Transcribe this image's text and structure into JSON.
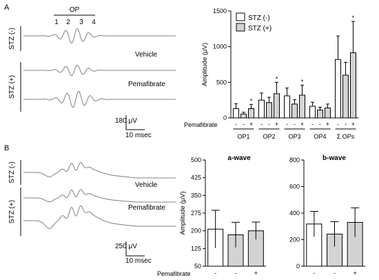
{
  "panels": {
    "a": {
      "letter": "A",
      "op_label": "OP",
      "op_numbers": [
        "1",
        "2",
        "3",
        "4"
      ],
      "group_labels": [
        "STZ (-)",
        "STZ (+)"
      ],
      "condition_labels": [
        "Vehicle",
        "Pemafibrate"
      ],
      "scale_amplitude": "180 μV",
      "scale_time": "10 msec"
    },
    "b": {
      "letter": "B",
      "group_labels": [
        "STZ (-)",
        "STZ (+)"
      ],
      "condition_labels": [
        "Vehicle",
        "Pemafibrate"
      ],
      "scale_amplitude": "250 μV",
      "scale_time": "10 msec"
    }
  },
  "chart_data": [
    {
      "type": "bar",
      "panel": "A",
      "title": "",
      "ylabel": "Amplitude (μV)",
      "ylim": [
        0,
        1500
      ],
      "yticks": [
        0,
        500,
        1000,
        1500
      ],
      "categories": [
        "OP1",
        "OP2",
        "OP3",
        "OP4",
        "Σ OPs"
      ],
      "pemafibrate_row_label": "Pemafibrate",
      "pemafibrate_marks": [
        "-",
        "-",
        "+"
      ],
      "legend": {
        "position": "top-left",
        "entries": [
          {
            "label": "STZ (-)",
            "color": "#ffffff"
          },
          {
            "label": "STZ (+)",
            "color": "#d3d3d3"
          }
        ]
      },
      "series": [
        {
          "stz": "-",
          "pemafibrate": "-",
          "color": "#ffffff",
          "values": [
            130,
            250,
            310,
            165,
            820
          ],
          "errors": [
            70,
            100,
            110,
            55,
            330
          ],
          "significant": [
            false,
            false,
            false,
            false,
            false
          ]
        },
        {
          "stz": "+",
          "pemafibrate": "-",
          "color": "#d3d3d3",
          "values": [
            55,
            215,
            195,
            110,
            600
          ],
          "errors": [
            25,
            75,
            60,
            40,
            180
          ],
          "significant": [
            false,
            false,
            false,
            false,
            false
          ]
        },
        {
          "stz": "+",
          "pemafibrate": "+",
          "color": "#d3d3d3",
          "values": [
            130,
            340,
            320,
            140,
            915
          ],
          "errors": [
            60,
            160,
            140,
            55,
            440
          ],
          "significant": [
            true,
            true,
            true,
            false,
            true
          ]
        }
      ],
      "significance_mark": "*"
    },
    {
      "type": "bar",
      "panel": "B",
      "title": "a-wave",
      "ylabel": "Amplitude (μV)",
      "ylim": [
        50,
        500
      ],
      "yticks": [
        50,
        125,
        200,
        275,
        350,
        425,
        500
      ],
      "pemafibrate_row_label": "Pemafibrate",
      "pemafibrate_marks": [
        "-",
        "-",
        "+"
      ],
      "series": [
        {
          "stz": "-",
          "pemafibrate": "-",
          "color": "#ffffff",
          "value": 207,
          "error": 80
        },
        {
          "stz": "+",
          "pemafibrate": "-",
          "color": "#d3d3d3",
          "value": 183,
          "error": 53
        },
        {
          "stz": "+",
          "pemafibrate": "+",
          "color": "#d3d3d3",
          "value": 200,
          "error": 37
        }
      ]
    },
    {
      "type": "bar",
      "panel": "B",
      "title": "b-wave",
      "ylabel": "",
      "ylim": [
        0,
        800
      ],
      "yticks": [
        0,
        200,
        400,
        600,
        800
      ],
      "series": [
        {
          "stz": "-",
          "pemafibrate": "-",
          "color": "#ffffff",
          "value": 318,
          "error": 95
        },
        {
          "stz": "+",
          "pemafibrate": "-",
          "color": "#d3d3d3",
          "value": 242,
          "error": 93
        },
        {
          "stz": "+",
          "pemafibrate": "+",
          "color": "#d3d3d3",
          "value": 330,
          "error": 110
        }
      ]
    }
  ]
}
